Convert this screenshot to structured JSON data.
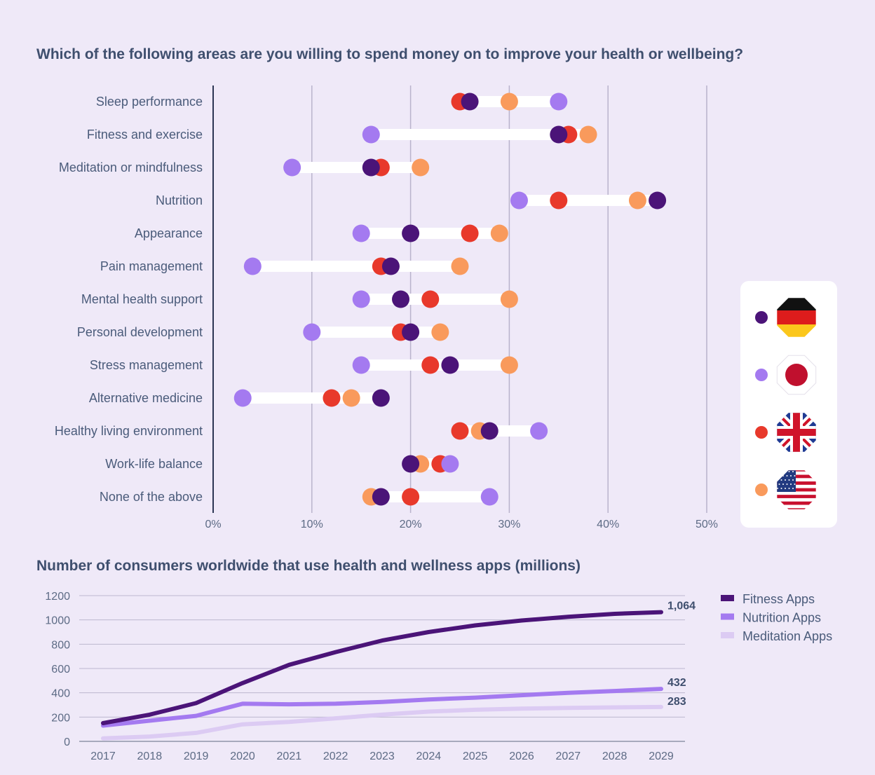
{
  "chart_data": [
    {
      "type": "scatter",
      "subtype": "dumbbell",
      "title": "Which of the following areas are you willing to spend money on to improve your health or wellbeing?",
      "categories": [
        "Sleep performance",
        "Fitness and exercise",
        "Meditation or mindfulness",
        "Nutrition",
        "Appearance",
        "Pain management",
        "Mental health support",
        "Personal development",
        "Stress management",
        "Alternative medicine",
        "Healthy living environment",
        "Work-life balance",
        "None of the above"
      ],
      "x_ticks": [
        "0%",
        "10%",
        "20%",
        "30%",
        "40%",
        "50%"
      ],
      "xlim": [
        0,
        50
      ],
      "grid": true,
      "legend_position": "right",
      "series": [
        {
          "flag": "germany-flag",
          "color": "#4b1478",
          "values": [
            26,
            35,
            16,
            45,
            20,
            18,
            19,
            20,
            24,
            17,
            28,
            20,
            17
          ]
        },
        {
          "flag": "japan-flag",
          "color": "#a47af0",
          "values": [
            35,
            16,
            8,
            31,
            15,
            4,
            15,
            10,
            15,
            3,
            33,
            24,
            28
          ]
        },
        {
          "flag": "uk-flag",
          "color": "#e8392b",
          "values": [
            25,
            36,
            17,
            35,
            26,
            17,
            22,
            19,
            22,
            12,
            25,
            23,
            20
          ]
        },
        {
          "flag": "usa-flag",
          "color": "#f99a5c",
          "values": [
            30,
            38,
            21,
            43,
            29,
            25,
            30,
            23,
            30,
            14,
            27,
            21,
            16
          ]
        }
      ]
    },
    {
      "type": "line",
      "title": "Number of consumers worldwide that use health and wellness apps (millions)",
      "x": [
        "2017",
        "2018",
        "2019",
        "2020",
        "2021",
        "2022",
        "2023",
        "2024",
        "2025",
        "2026",
        "2027",
        "2028",
        "2029"
      ],
      "ylim": [
        0,
        1200
      ],
      "y_ticks": [
        "0",
        "200",
        "400",
        "600",
        "800",
        "1000",
        "1200"
      ],
      "grid": true,
      "legend_position": "top-right",
      "series": [
        {
          "name": "Fitness Apps",
          "color": "#4b1478",
          "end_label": "1,064",
          "values": [
            150,
            220,
            315,
            480,
            630,
            735,
            830,
            900,
            955,
            995,
            1025,
            1050,
            1064
          ]
        },
        {
          "name": "Nutrition Apps",
          "color": "#a47af0",
          "end_label": "432",
          "values": [
            130,
            170,
            210,
            310,
            305,
            310,
            325,
            345,
            360,
            380,
            400,
            415,
            432
          ]
        },
        {
          "name": "Meditation Apps",
          "color": "#dccbf3",
          "end_label": "283",
          "values": [
            25,
            40,
            70,
            140,
            160,
            190,
            220,
            245,
            260,
            270,
            275,
            280,
            283
          ]
        }
      ]
    }
  ]
}
